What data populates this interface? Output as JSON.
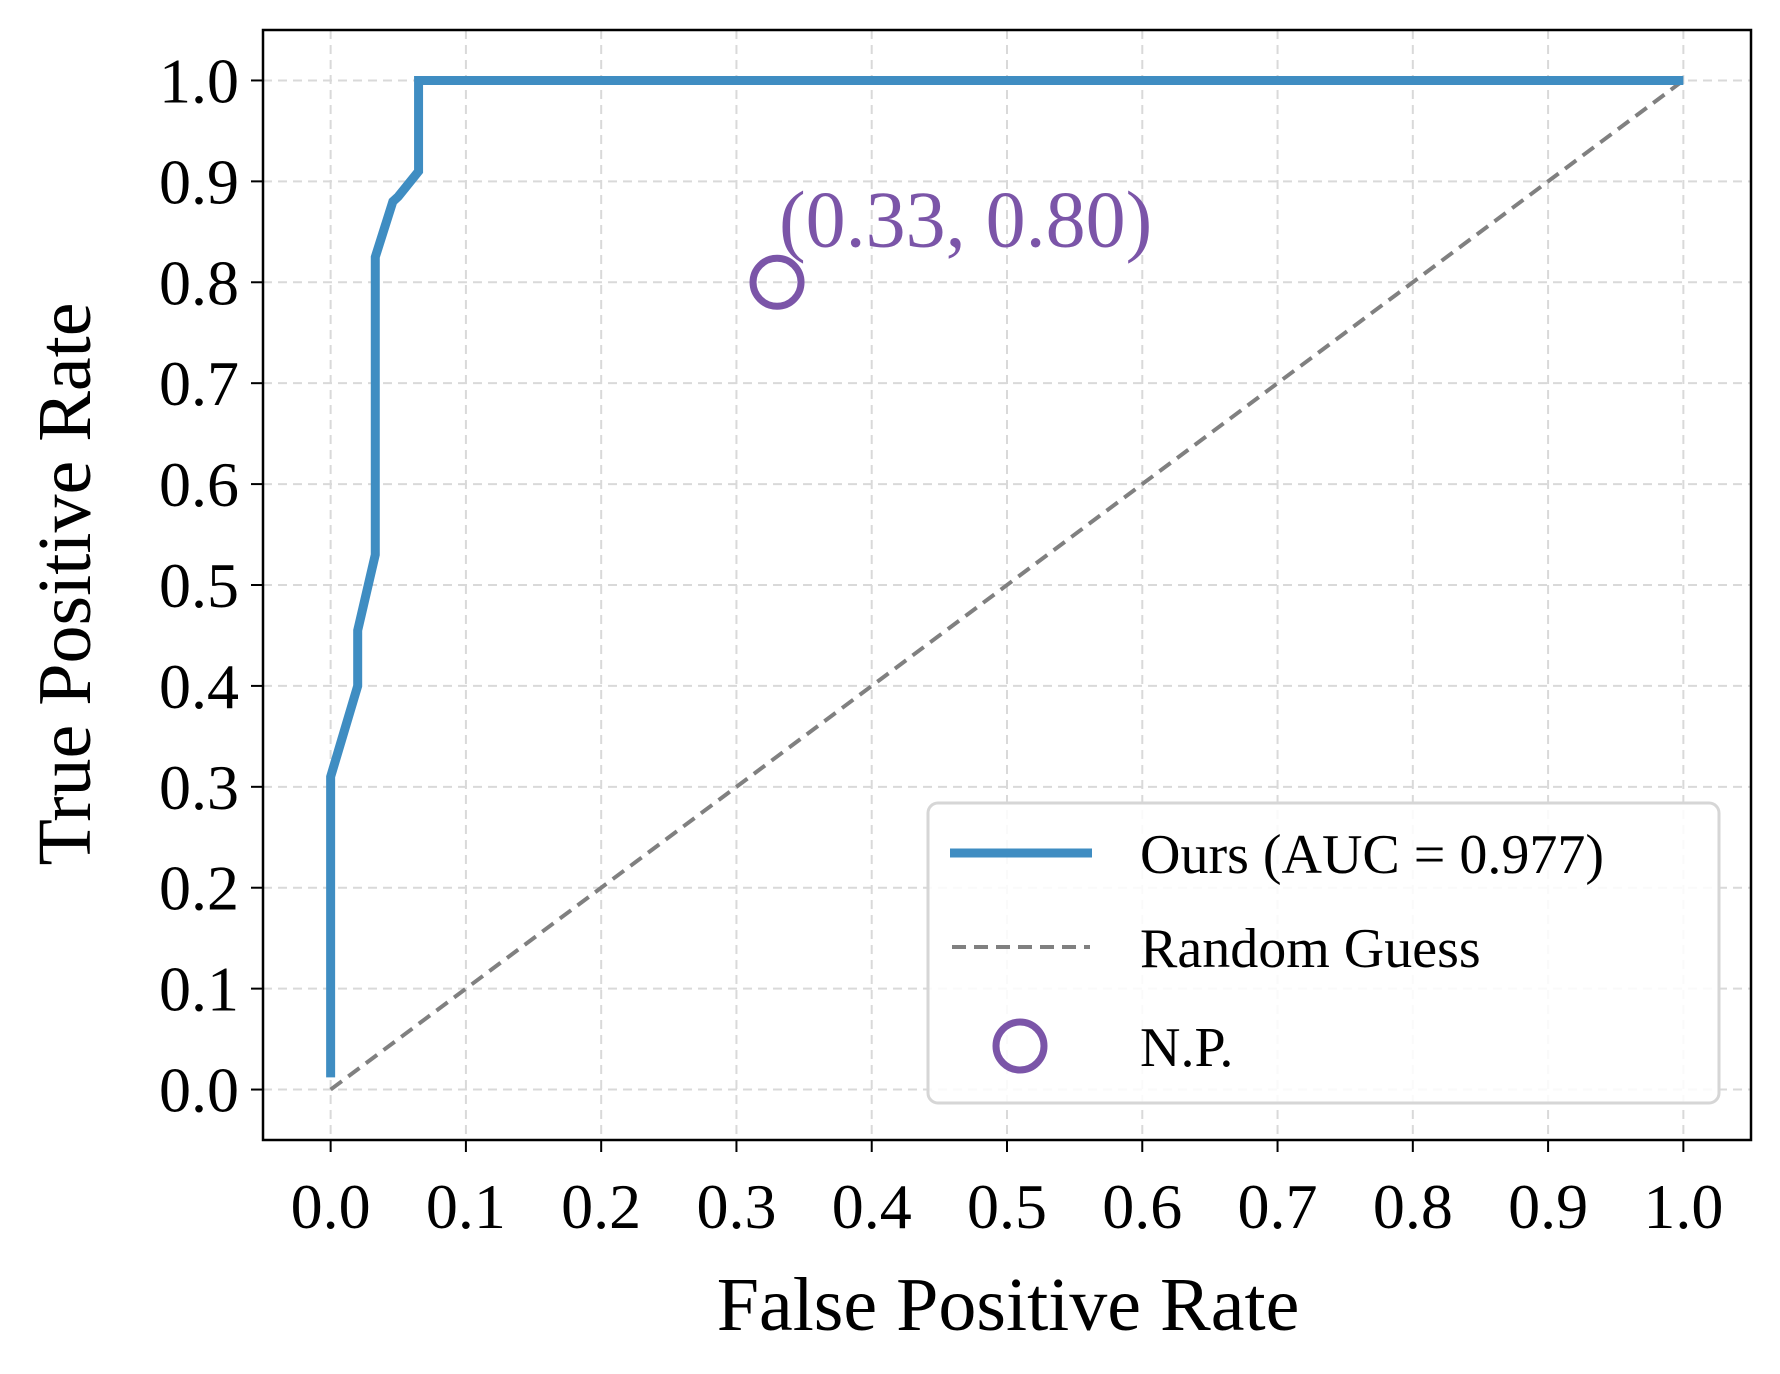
{
  "chart_data": {
    "type": "line",
    "xlabel": "False Positive Rate",
    "ylabel": "True Positive Rate",
    "xlim": [
      -0.05,
      1.05
    ],
    "ylim": [
      -0.05,
      1.05
    ],
    "grid": true,
    "legend_position": "bottom-right",
    "xticks": [
      0.0,
      0.1,
      0.2,
      0.3,
      0.4,
      0.5,
      0.6,
      0.7,
      0.8,
      0.9,
      1.0
    ],
    "yticks": [
      0.0,
      0.1,
      0.2,
      0.3,
      0.4,
      0.5,
      0.6,
      0.7,
      0.8,
      0.9,
      1.0
    ],
    "xtick_labels": [
      "0.0",
      "0.1",
      "0.2",
      "0.3",
      "0.4",
      "0.5",
      "0.6",
      "0.7",
      "0.8",
      "0.9",
      "1.0"
    ],
    "ytick_labels": [
      "0.0",
      "0.1",
      "0.2",
      "0.3",
      "0.4",
      "0.5",
      "0.6",
      "0.7",
      "0.8",
      "0.9",
      "1.0"
    ],
    "series": [
      {
        "name": "Ours (AUC = 0.977)",
        "kind": "line",
        "color": "#3f8dc2",
        "x": [
          0.0,
          0.0,
          0.02,
          0.02,
          0.033,
          0.033,
          0.046,
          0.05,
          0.065,
          0.065,
          0.16,
          0.4,
          1.0
        ],
        "y": [
          0.012,
          0.31,
          0.4,
          0.455,
          0.53,
          0.825,
          0.88,
          0.885,
          0.91,
          1.0,
          1.0,
          1.0,
          1.0
        ]
      },
      {
        "name": "Random Guess",
        "kind": "dashed",
        "color": "#808080",
        "x": [
          0.0,
          1.0
        ],
        "y": [
          0.0,
          1.0
        ]
      },
      {
        "name": "N.P.",
        "kind": "marker",
        "color": "#7b55a8",
        "x": [
          0.33
        ],
        "y": [
          0.8
        ]
      }
    ],
    "annotations": [
      {
        "text": "(0.33, 0.80)",
        "x": 0.33,
        "y": 0.8,
        "color": "#7b55a8"
      }
    ]
  }
}
